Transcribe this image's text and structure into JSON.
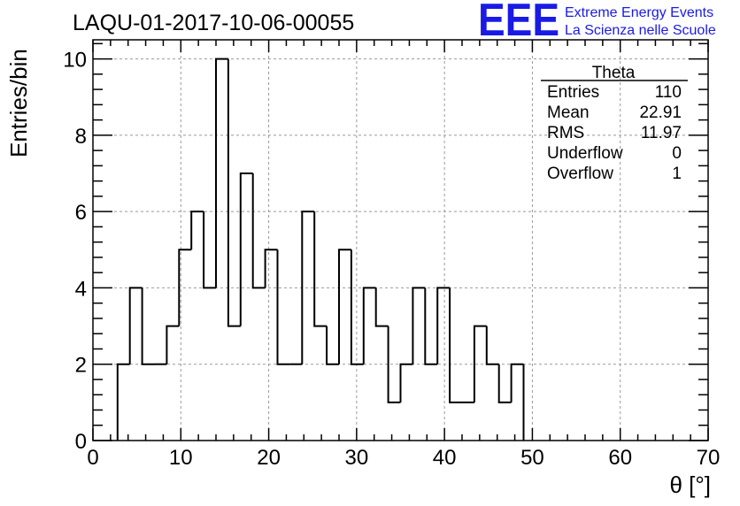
{
  "title": "LAQU-01-2017-10-06-00055",
  "logo": {
    "mark": "EEE",
    "line1": "Extreme Energy Events",
    "line2": "La Scienza nelle Scuole",
    "color": "#1a1ae6"
  },
  "stats": {
    "name": "Theta",
    "rows": [
      {
        "label": "Entries",
        "value": "110"
      },
      {
        "label": "Mean",
        "value": "22.91"
      },
      {
        "label": "RMS",
        "value": "11.97"
      },
      {
        "label": "Underflow",
        "value": "0"
      },
      {
        "label": "Overflow",
        "value": "1"
      }
    ]
  },
  "chart_data": {
    "type": "histogram",
    "xlabel": "θ [°]",
    "ylabel": "Entries/bin",
    "xlim": [
      0,
      70
    ],
    "ylim": [
      0,
      10.5
    ],
    "x_ticks": [
      "0",
      "10",
      "20",
      "30",
      "40",
      "50",
      "60",
      "70"
    ],
    "y_ticks": [
      "0",
      "2",
      "4",
      "6",
      "8",
      "10"
    ],
    "grid": true,
    "bin_width": 1.4,
    "bin_start": 2.8,
    "values": [
      2,
      4,
      2,
      2,
      3,
      5,
      6,
      4,
      10,
      3,
      7,
      4,
      5,
      2,
      2,
      6,
      3,
      2,
      5,
      2,
      4,
      3,
      1,
      2,
      4,
      2,
      4,
      1,
      1,
      3,
      2,
      1,
      2
    ]
  }
}
